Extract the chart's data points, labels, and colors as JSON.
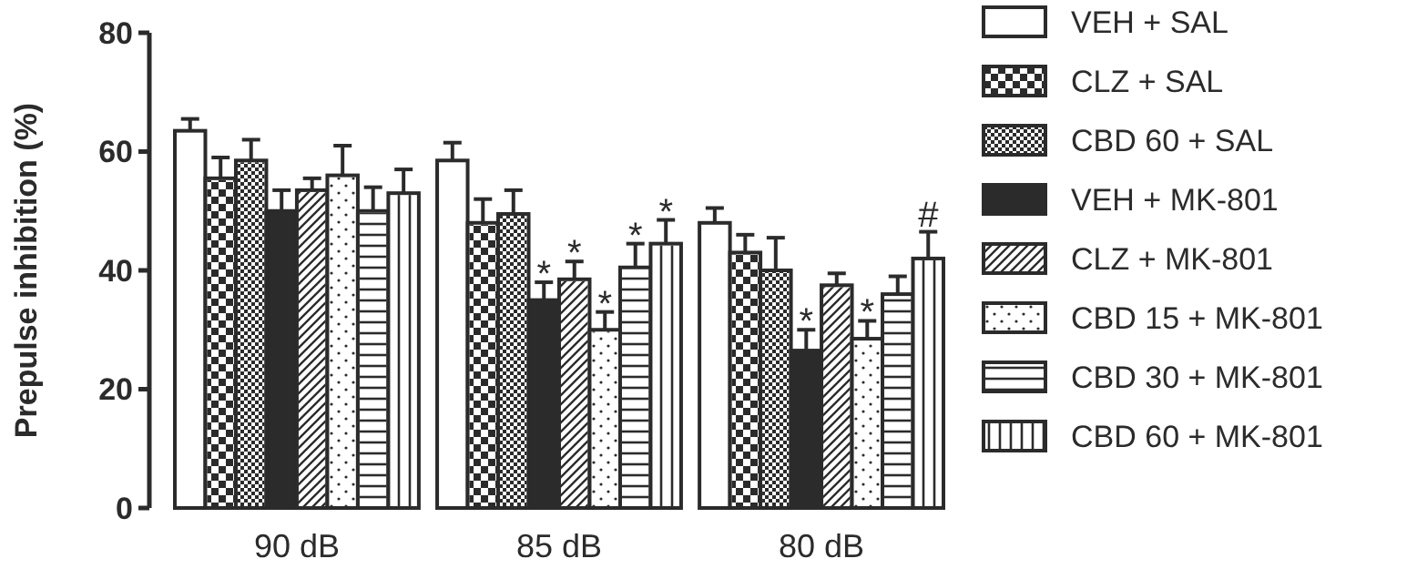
{
  "chart_data": {
    "type": "bar",
    "ylabel": "Prepulse inhibition (%)",
    "categories": [
      "90 dB",
      "85 dB",
      "80 dB"
    ],
    "ylim": [
      0,
      80
    ],
    "yticks": [
      0,
      20,
      40,
      60,
      80
    ],
    "legend": "right",
    "grid": false,
    "series": [
      {
        "name": "VEH + SAL",
        "color": "#ffffff",
        "values": [
          63.5,
          58.5,
          48
        ],
        "errors": [
          2,
          3,
          2.5
        ]
      },
      {
        "name": "CLZ + SAL",
        "color": "#ffffff",
        "values": [
          55.5,
          48,
          43
        ],
        "errors": [
          3.5,
          4,
          3
        ]
      },
      {
        "name": "CBD 60 + SAL",
        "color": "#ffffff",
        "values": [
          58.5,
          49.5,
          40
        ],
        "errors": [
          3.5,
          4,
          5.5
        ]
      },
      {
        "name": "VEH + MK-801",
        "color": "#2b2b2b",
        "values": [
          50,
          35,
          26.5
        ],
        "errors": [
          3.5,
          3,
          3.5
        ],
        "value_labels": [
          null,
          "*",
          "*"
        ]
      },
      {
        "name": "CLZ + MK-801",
        "color": "#ffffff",
        "values": [
          53.5,
          38.5,
          37.5
        ],
        "errors": [
          2,
          3,
          2
        ],
        "value_labels": [
          null,
          "*",
          null
        ]
      },
      {
        "name": "CBD 15 + MK-801",
        "color": "#ffffff",
        "values": [
          56,
          30,
          28.5
        ],
        "errors": [
          5,
          3,
          3
        ],
        "value_labels": [
          null,
          "*",
          "*"
        ]
      },
      {
        "name": "CBD 30 + MK-801",
        "color": "#ffffff",
        "values": [
          50,
          40.5,
          36
        ],
        "errors": [
          4,
          4,
          3
        ],
        "value_labels": [
          null,
          "*",
          null
        ]
      },
      {
        "name": "CBD 60 + MK-801",
        "color": "#ffffff",
        "values": [
          53,
          44.5,
          42
        ],
        "errors": [
          4,
          4,
          4.5
        ],
        "value_labels": [
          null,
          "*",
          "#"
        ]
      }
    ]
  }
}
